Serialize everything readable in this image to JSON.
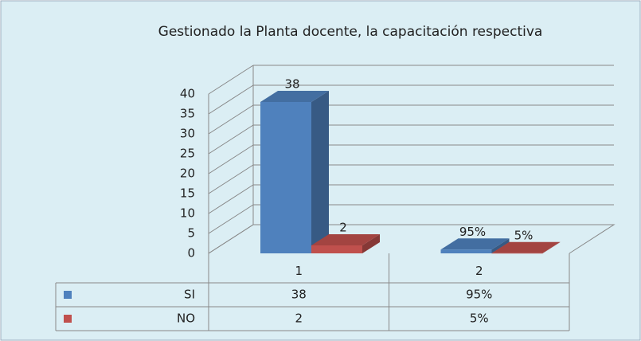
{
  "chart_data": {
    "type": "bar3d",
    "title": "Gestionado la Planta docente, la capacitación respectiva",
    "categories": [
      "1",
      "2"
    ],
    "series": [
      {
        "name": "SI",
        "color": "#4f81bd",
        "values": [
          38,
          0.95
        ],
        "value_labels": [
          "38",
          "95%"
        ]
      },
      {
        "name": "NO",
        "color": "#c0504d",
        "values": [
          2,
          0.05
        ],
        "value_labels": [
          "2",
          "5%"
        ]
      }
    ],
    "ylim": [
      0,
      40
    ],
    "yticks": [
      0,
      5,
      10,
      15,
      20,
      25,
      30,
      35,
      40
    ],
    "grid": true
  }
}
